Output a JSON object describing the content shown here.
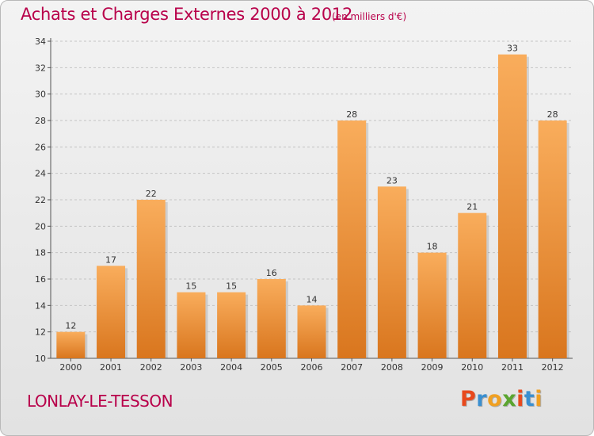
{
  "header": {
    "title": "Achats et Charges Externes 2000 à 2012",
    "subtitle": "(en milliers d'€)"
  },
  "footer": {
    "commune": "LONLAY-LE-TESSON",
    "logo_text": "Proxiti"
  },
  "colors": {
    "title": "#b8004a",
    "bar_light": "#f9ad5c",
    "bar_dark": "#d9761e",
    "logo_letters": [
      "#e8491d",
      "#3a8fd0",
      "#f0a022",
      "#5aa52f",
      "#e8491d",
      "#3a8fd0",
      "#f0a022"
    ]
  },
  "chart_data": {
    "type": "bar",
    "categories": [
      "2000",
      "2001",
      "2002",
      "2003",
      "2004",
      "2005",
      "2006",
      "2007",
      "2008",
      "2009",
      "2010",
      "2011",
      "2012"
    ],
    "values": [
      12,
      17,
      22,
      15,
      15,
      16,
      14,
      28,
      23,
      18,
      21,
      33,
      28
    ],
    "title": "Achats et Charges Externes 2000 à 2012",
    "ylabel": "",
    "xlabel": "",
    "ylim": [
      10,
      34
    ],
    "yticks": [
      10,
      12,
      14,
      16,
      18,
      20,
      22,
      24,
      26,
      28,
      30,
      32,
      34
    ],
    "grid": "horizontal dashed",
    "data_labels": true
  }
}
